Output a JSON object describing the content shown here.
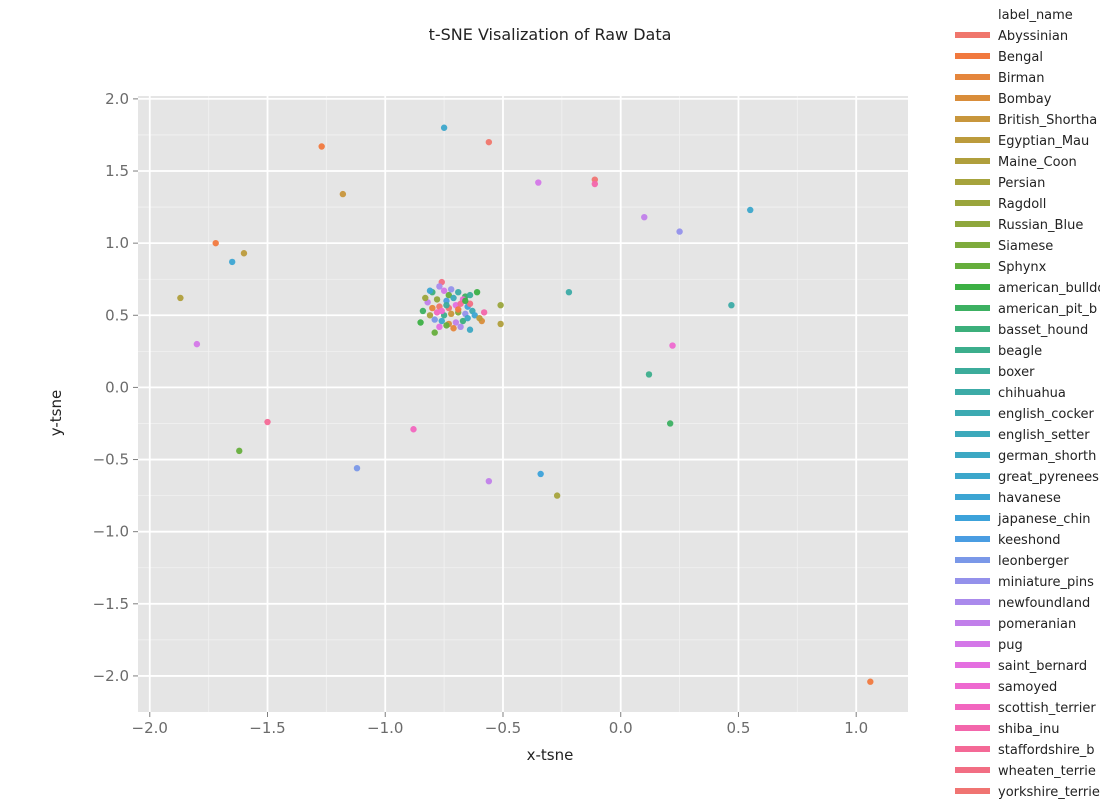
{
  "chart_data": {
    "type": "scatter",
    "title": "t-SNE Visalization of Raw Data",
    "xlabel": "x-tsne",
    "ylabel": "y-tsne",
    "xlim": [
      -2.05,
      1.22
    ],
    "ylim": [
      -2.25,
      2.02
    ],
    "xticks": [
      -2.0,
      -1.5,
      -1.0,
      -0.5,
      0.0,
      0.5,
      1.0
    ],
    "xtick_labels": [
      "−2.0",
      "−1.5",
      "−1.0",
      "−0.5",
      "0.0",
      "0.5",
      "1.0"
    ],
    "yticks": [
      2.0,
      1.5,
      1.0,
      0.5,
      0.0,
      -0.5,
      -1.0,
      -1.5,
      -2.0
    ],
    "ytick_labels": [
      "2.0",
      "1.5",
      "1.0",
      "0.5",
      "0.0",
      "−0.5",
      "−1.0",
      "−1.5",
      "−2.0"
    ],
    "grid": true,
    "background": "#e5e5e5",
    "legend_position": "right",
    "legend_title": "label_name",
    "legend": [
      {
        "label": "Abyssinian",
        "color": "#f0766c"
      },
      {
        "label": "Bengal",
        "color": "#f1793e"
      },
      {
        "label": "Birman",
        "color": "#e5863c"
      },
      {
        "label": "Bombay",
        "color": "#d98d3a"
      },
      {
        "label": "British_Shortha",
        "color": "#c8963c"
      },
      {
        "label": "Egyptian_Mau",
        "color": "#bc9b3c"
      },
      {
        "label": "Maine_Coon",
        "color": "#b09f3c"
      },
      {
        "label": "Persian",
        "color": "#a6a33c"
      },
      {
        "label": "Ragdoll",
        "color": "#9aa53c"
      },
      {
        "label": "Russian_Blue",
        "color": "#8ea73c"
      },
      {
        "label": "Siamese",
        "color": "#7eab3c"
      },
      {
        "label": "Sphynx",
        "color": "#66ae3c"
      },
      {
        "label": "american_bulldo",
        "color": "#3cb044"
      },
      {
        "label": "american_pit_b",
        "color": "#3cb062"
      },
      {
        "label": "basset_hound",
        "color": "#3caf7b"
      },
      {
        "label": "beagle",
        "color": "#3cae8c"
      },
      {
        "label": "boxer",
        "color": "#3cac9b"
      },
      {
        "label": "chihuahua",
        "color": "#3caba7"
      },
      {
        "label": "english_cocker",
        "color": "#3caab2"
      },
      {
        "label": "english_setter",
        "color": "#3ca9bb"
      },
      {
        "label": "german_shorth",
        "color": "#3ca8c3"
      },
      {
        "label": "great_pyrenees",
        "color": "#3ca7cb"
      },
      {
        "label": "havanese",
        "color": "#3ca5d3"
      },
      {
        "label": "japanese_chin",
        "color": "#3ca2da"
      },
      {
        "label": "keeshond",
        "color": "#4a9de2"
      },
      {
        "label": "leonberger",
        "color": "#7a98e8"
      },
      {
        "label": "miniature_pins",
        "color": "#9491eb"
      },
      {
        "label": "newfoundland",
        "color": "#aa8aec"
      },
      {
        "label": "pomeranian",
        "color": "#c17fea"
      },
      {
        "label": "pug",
        "color": "#d477e8"
      },
      {
        "label": "saint_bernard",
        "color": "#e46fe0"
      },
      {
        "label": "samoyed",
        "color": "#ee69d0"
      },
      {
        "label": "scottish_terrier",
        "color": "#f266bf"
      },
      {
        "label": "shiba_inu",
        "color": "#f366ab"
      },
      {
        "label": "staffordshire_b",
        "color": "#f46996"
      },
      {
        "label": "wheaten_terrie",
        "color": "#f26e83"
      },
      {
        "label": "yorkshire_terrie",
        "color": "#f07472"
      }
    ],
    "points": [
      {
        "x": -0.75,
        "y": 1.8,
        "c": 21
      },
      {
        "x": -0.56,
        "y": 1.7,
        "c": 0
      },
      {
        "x": -1.27,
        "y": 1.67,
        "c": 1
      },
      {
        "x": -1.18,
        "y": 1.34,
        "c": 4
      },
      {
        "x": -0.35,
        "y": 1.42,
        "c": 29
      },
      {
        "x": -0.11,
        "y": 1.44,
        "c": 36
      },
      {
        "x": -0.11,
        "y": 1.41,
        "c": 33
      },
      {
        "x": 0.1,
        "y": 1.18,
        "c": 28
      },
      {
        "x": 0.25,
        "y": 1.08,
        "c": 26
      },
      {
        "x": 0.55,
        "y": 1.23,
        "c": 21
      },
      {
        "x": -1.72,
        "y": 1.0,
        "c": 1
      },
      {
        "x": -1.6,
        "y": 0.93,
        "c": 5
      },
      {
        "x": -1.65,
        "y": 0.87,
        "c": 22
      },
      {
        "x": -1.87,
        "y": 0.62,
        "c": 6
      },
      {
        "x": -1.8,
        "y": 0.3,
        "c": 29
      },
      {
        "x": -0.22,
        "y": 0.66,
        "c": 17
      },
      {
        "x": 0.47,
        "y": 0.57,
        "c": 17
      },
      {
        "x": 0.22,
        "y": 0.29,
        "c": 31
      },
      {
        "x": 0.12,
        "y": 0.09,
        "c": 15
      },
      {
        "x": 0.21,
        "y": -0.25,
        "c": 13
      },
      {
        "x": -1.5,
        "y": -0.24,
        "c": 34
      },
      {
        "x": -0.88,
        "y": -0.29,
        "c": 32
      },
      {
        "x": -1.62,
        "y": -0.44,
        "c": 11
      },
      {
        "x": -1.12,
        "y": -0.56,
        "c": 25
      },
      {
        "x": -0.34,
        "y": -0.6,
        "c": 23
      },
      {
        "x": -0.56,
        "y": -0.65,
        "c": 28
      },
      {
        "x": -0.27,
        "y": -0.75,
        "c": 7
      },
      {
        "x": 1.06,
        "y": -2.04,
        "c": 1
      },
      {
        "x": -0.51,
        "y": 0.57,
        "c": 8
      },
      {
        "x": -0.51,
        "y": 0.44,
        "c": 6
      },
      {
        "x": -0.61,
        "y": 0.66,
        "c": 12
      },
      {
        "x": -0.58,
        "y": 0.52,
        "c": 33
      },
      {
        "x": -0.59,
        "y": 0.46,
        "c": 3
      },
      {
        "x": -0.64,
        "y": 0.4,
        "c": 20
      },
      {
        "x": -0.85,
        "y": 0.45,
        "c": 12
      },
      {
        "x": -0.79,
        "y": 0.38,
        "c": 11
      },
      {
        "x": -0.76,
        "y": 0.73,
        "c": 35
      },
      {
        "x": -0.77,
        "y": 0.7,
        "c": 27
      },
      {
        "x": -0.8,
        "y": 0.66,
        "c": 14
      },
      {
        "x": -0.81,
        "y": 0.67,
        "c": 22
      },
      {
        "x": -0.75,
        "y": 0.67,
        "c": 29
      },
      {
        "x": -0.73,
        "y": 0.64,
        "c": 11
      },
      {
        "x": -0.69,
        "y": 0.66,
        "c": 17
      },
      {
        "x": -0.66,
        "y": 0.63,
        "c": 13
      },
      {
        "x": -0.64,
        "y": 0.64,
        "c": 16
      },
      {
        "x": -0.67,
        "y": 0.61,
        "c": 31
      },
      {
        "x": -0.71,
        "y": 0.62,
        "c": 19
      },
      {
        "x": -0.74,
        "y": 0.6,
        "c": 24
      },
      {
        "x": -0.78,
        "y": 0.61,
        "c": 9
      },
      {
        "x": -0.82,
        "y": 0.59,
        "c": 28
      },
      {
        "x": -0.84,
        "y": 0.53,
        "c": 13
      },
      {
        "x": -0.8,
        "y": 0.55,
        "c": 2
      },
      {
        "x": -0.77,
        "y": 0.56,
        "c": 0
      },
      {
        "x": -0.73,
        "y": 0.55,
        "c": 36
      },
      {
        "x": -0.7,
        "y": 0.57,
        "c": 30
      },
      {
        "x": -0.68,
        "y": 0.58,
        "c": 34
      },
      {
        "x": -0.65,
        "y": 0.56,
        "c": 23
      },
      {
        "x": -0.63,
        "y": 0.53,
        "c": 18
      },
      {
        "x": -0.66,
        "y": 0.51,
        "c": 26
      },
      {
        "x": -0.69,
        "y": 0.52,
        "c": 10
      },
      {
        "x": -0.72,
        "y": 0.51,
        "c": 4
      },
      {
        "x": -0.75,
        "y": 0.5,
        "c": 15
      },
      {
        "x": -0.78,
        "y": 0.52,
        "c": 32
      },
      {
        "x": -0.81,
        "y": 0.5,
        "c": 7
      },
      {
        "x": -0.79,
        "y": 0.47,
        "c": 25
      },
      {
        "x": -0.76,
        "y": 0.46,
        "c": 21
      },
      {
        "x": -0.73,
        "y": 0.44,
        "c": 3
      },
      {
        "x": -0.7,
        "y": 0.45,
        "c": 28
      },
      {
        "x": -0.67,
        "y": 0.46,
        "c": 14
      },
      {
        "x": -0.65,
        "y": 0.48,
        "c": 20
      },
      {
        "x": -0.68,
        "y": 0.42,
        "c": 27
      },
      {
        "x": -0.71,
        "y": 0.41,
        "c": 2
      },
      {
        "x": -0.74,
        "y": 0.43,
        "c": 11
      },
      {
        "x": -0.77,
        "y": 0.42,
        "c": 30
      },
      {
        "x": -0.62,
        "y": 0.5,
        "c": 22
      },
      {
        "x": -0.6,
        "y": 0.48,
        "c": 5
      },
      {
        "x": -0.64,
        "y": 0.58,
        "c": 35
      },
      {
        "x": -0.72,
        "y": 0.68,
        "c": 26
      },
      {
        "x": -0.83,
        "y": 0.62,
        "c": 8
      },
      {
        "x": -0.69,
        "y": 0.54,
        "c": 1
      },
      {
        "x": -0.74,
        "y": 0.57,
        "c": 16
      },
      {
        "x": -0.76,
        "y": 0.53,
        "c": 31
      },
      {
        "x": -0.66,
        "y": 0.6,
        "c": 12
      }
    ]
  }
}
